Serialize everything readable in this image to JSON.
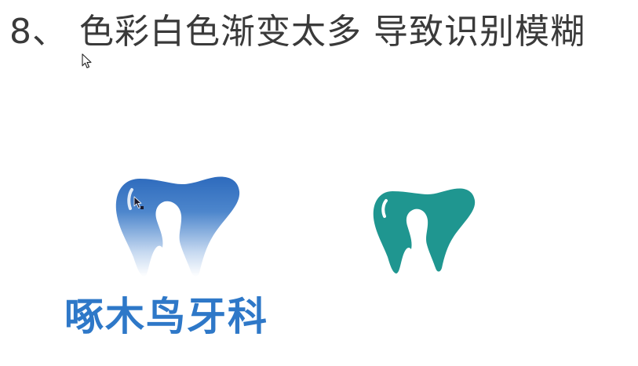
{
  "slide": {
    "title": "8、 色彩白色渐变太多 导致识别模糊"
  },
  "logos": {
    "left": {
      "icon": "tooth-woodpecker-gradient-icon",
      "name": "啄木鸟牙科",
      "colors": {
        "top": "#2e6bbd",
        "bottom": "#ffffff"
      }
    },
    "right": {
      "icon": "tooth-woodpecker-solid-icon",
      "colors": {
        "fill": "#1f9690"
      }
    }
  }
}
